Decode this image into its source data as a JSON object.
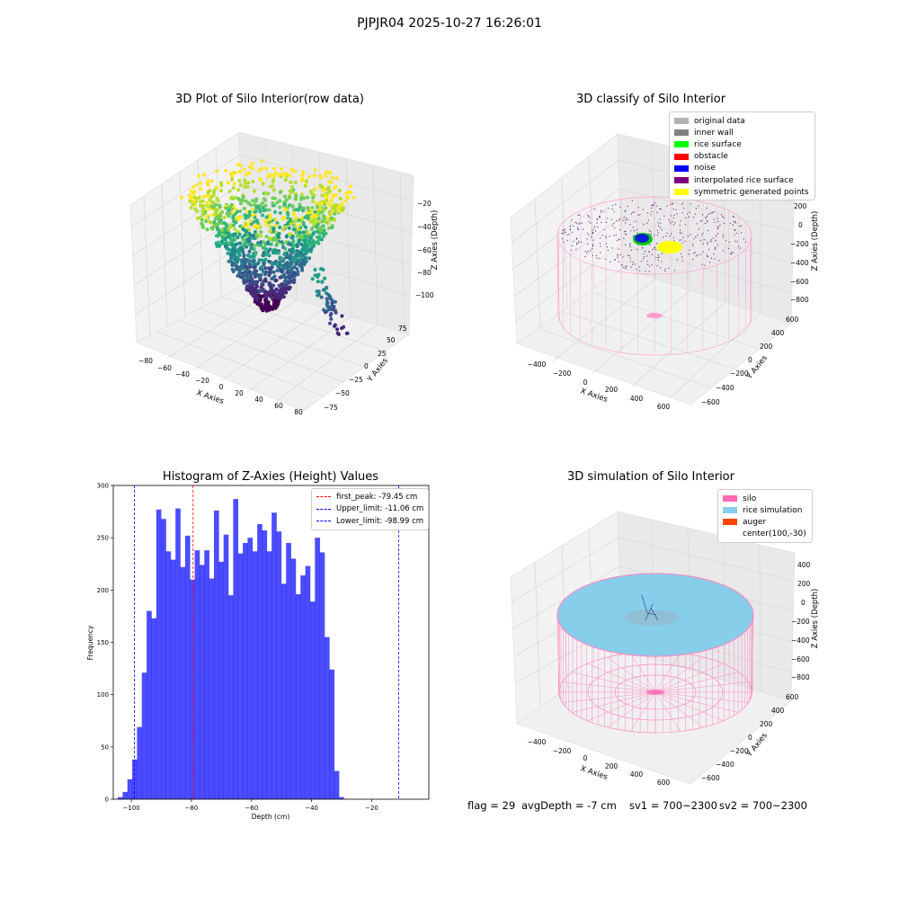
{
  "figure": {
    "suptitle": "PJPJR04 2025-10-27 16:26:01",
    "footer": {
      "flag": "flag = 29",
      "avg_depth": "avgDepth = -7 cm",
      "sv1": "sv1 = 700~2300",
      "sv2": "sv2 = 700~2300"
    }
  },
  "chart_data": [
    {
      "type": "scatter",
      "title": "3D Plot of Silo Interior(row data)",
      "xlabel": "X Axies",
      "ylabel": "Y Axies",
      "zlabel": "Z Axies (Depth)",
      "x_ticks": [
        "−80",
        "−60",
        "−40",
        "−20",
        "0",
        "20",
        "40",
        "60",
        "80"
      ],
      "y_ticks": [
        "−75",
        "−50",
        "−25",
        "0",
        "25",
        "50",
        "75"
      ],
      "z_ticks": [
        "−20",
        "−40",
        "−60",
        "−80",
        "−100"
      ],
      "colormap": "viridis"
    },
    {
      "type": "scatter",
      "title": "3D classify of Silo Interior",
      "xlabel": "X Axies",
      "ylabel": "Y Axies",
      "zlabel": "Z Axies (Depth)",
      "x_ticks": [
        "−400",
        "−200",
        "0",
        "200",
        "400",
        "600"
      ],
      "y_ticks": [
        "600",
        "400",
        "200",
        "0",
        "−200",
        "−400",
        "−600"
      ],
      "z_ticks": [
        "200",
        "0",
        "−200",
        "−400",
        "−600",
        "−800"
      ],
      "z_top_partial_tick": "00",
      "legend": [
        {
          "label": "original data",
          "color": "#b3b3b3"
        },
        {
          "label": "inner wall",
          "color": "#808080"
        },
        {
          "label": "rice surface",
          "color": "#00ff00"
        },
        {
          "label": "obstacle",
          "color": "#ff0000"
        },
        {
          "label": "noise",
          "color": "#0000ff"
        },
        {
          "label": "interpolated rice surface",
          "color": "#800080"
        },
        {
          "label": "symmetric generated points",
          "color": "#ffff00"
        }
      ]
    },
    {
      "type": "bar",
      "title": "Histogram of Z-Axies (Height) Values",
      "xlabel": "Depth (cm)",
      "ylabel": "Frequency",
      "xlim": [
        -106,
        -1
      ],
      "ylim": [
        0,
        300
      ],
      "x_ticks": [
        -100,
        -80,
        -60,
        -40,
        -20
      ],
      "x_tick_labels": [
        "−100",
        "−80",
        "−60",
        "−40",
        "−20"
      ],
      "y_ticks": [
        0,
        50,
        100,
        150,
        200,
        250,
        300
      ],
      "bin_start": -104.5,
      "bin_width": 1.6,
      "values": [
        2,
        7,
        19,
        38,
        69,
        121,
        180,
        173,
        277,
        268,
        237,
        229,
        278,
        222,
        252,
        210,
        238,
        224,
        238,
        211,
        276,
        227,
        253,
        195,
        287,
        235,
        245,
        250,
        237,
        263,
        257,
        237,
        274,
        256,
        206,
        245,
        230,
        196,
        214,
        223,
        189,
        250,
        236,
        155,
        124,
        27,
        2
      ],
      "bar_color": "#0000ff",
      "bar_alpha": 0.7,
      "legend": [
        {
          "label": "first_peak: -79.45 cm",
          "color": "#ff0000",
          "x": -79.45
        },
        {
          "label": "Upper_limit: -11.06 cm",
          "color": "#0000ff",
          "x": -11.06
        },
        {
          "label": "Lower_limit: -98.99 cm",
          "color": "#0000ff",
          "x": -98.99
        }
      ]
    },
    {
      "type": "scatter",
      "title": "3D simulation of Silo Interior",
      "xlabel": "X Axies",
      "ylabel": "Y Axies",
      "zlabel": "Z Axies (Depth)",
      "x_ticks": [
        "−400",
        "−200",
        "0",
        "200",
        "400",
        "600"
      ],
      "y_ticks": [
        "600",
        "400",
        "200",
        "0",
        "−200",
        "−400",
        "−600"
      ],
      "z_ticks": [
        "400",
        "200",
        "0",
        "−200",
        "−400",
        "−600",
        "−800"
      ],
      "legend": [
        {
          "label": "silo",
          "color": "#ff69b4"
        },
        {
          "label": "rice simulation",
          "color": "#87ceeb"
        },
        {
          "label": "auger",
          "color": "#ff4500"
        },
        {
          "label": "center(100,-30)",
          "color": ""
        }
      ]
    }
  ]
}
